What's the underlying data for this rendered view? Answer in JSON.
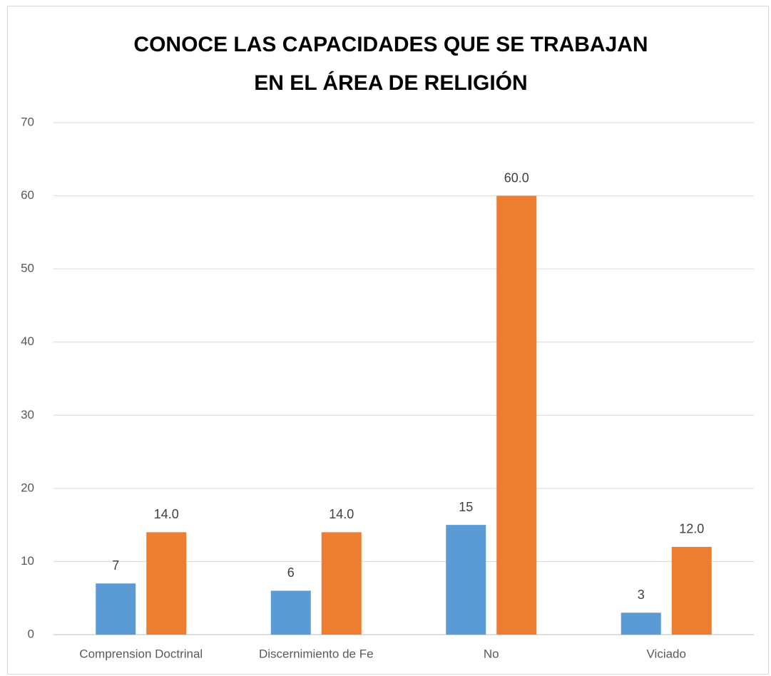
{
  "chart_data": {
    "type": "bar",
    "title": [
      "CONOCE LAS CAPACIDADES QUE SE TRABAJAN",
      "EN EL ÁREA DE RELIGIÓN"
    ],
    "categories": [
      "Comprension Doctrinal",
      "Discernimiento de Fe",
      "No",
      "Viciado"
    ],
    "series": [
      {
        "color": "#5b9bd5",
        "values": [
          7,
          6,
          15,
          3
        ]
      },
      {
        "color": "#ed7d31",
        "values": [
          14,
          14,
          60,
          12
        ],
        "value_labels": [
          "14.0",
          "14.0",
          "60.0",
          "12.0"
        ]
      }
    ],
    "ylim": [
      0,
      70
    ],
    "yticks": [
      0,
      10,
      20,
      30,
      40,
      50,
      60,
      70
    ],
    "grid": true
  }
}
